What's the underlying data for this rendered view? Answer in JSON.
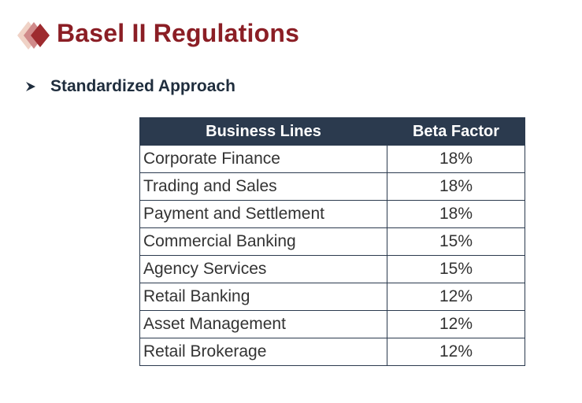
{
  "header": {
    "title": "Basel II Regulations"
  },
  "section": {
    "bullet_icon": "arrow-bullet-icon",
    "subtitle": "Standardized Approach"
  },
  "table": {
    "columns": [
      "Business Lines",
      "Beta Factor"
    ],
    "rows": [
      {
        "line": "Corporate Finance",
        "beta": "18%"
      },
      {
        "line": "Trading and Sales",
        "beta": "18%"
      },
      {
        "line": "Payment and Settlement",
        "beta": "18%"
      },
      {
        "line": "Commercial Banking",
        "beta": "15%"
      },
      {
        "line": "Agency Services",
        "beta": "15%"
      },
      {
        "line": "Retail Banking",
        "beta": "12%"
      },
      {
        "line": "Asset Management",
        "beta": "12%"
      },
      {
        "line": "Retail Brokerage",
        "beta": "12%"
      }
    ]
  },
  "colors": {
    "title": "#8b1e25",
    "header_fill": "#2b3a4e",
    "text": "#333333",
    "diamond_dark": "#9e2b2f",
    "diamond_mid": "#d08a8a",
    "diamond_light": "#f0d2c6"
  }
}
